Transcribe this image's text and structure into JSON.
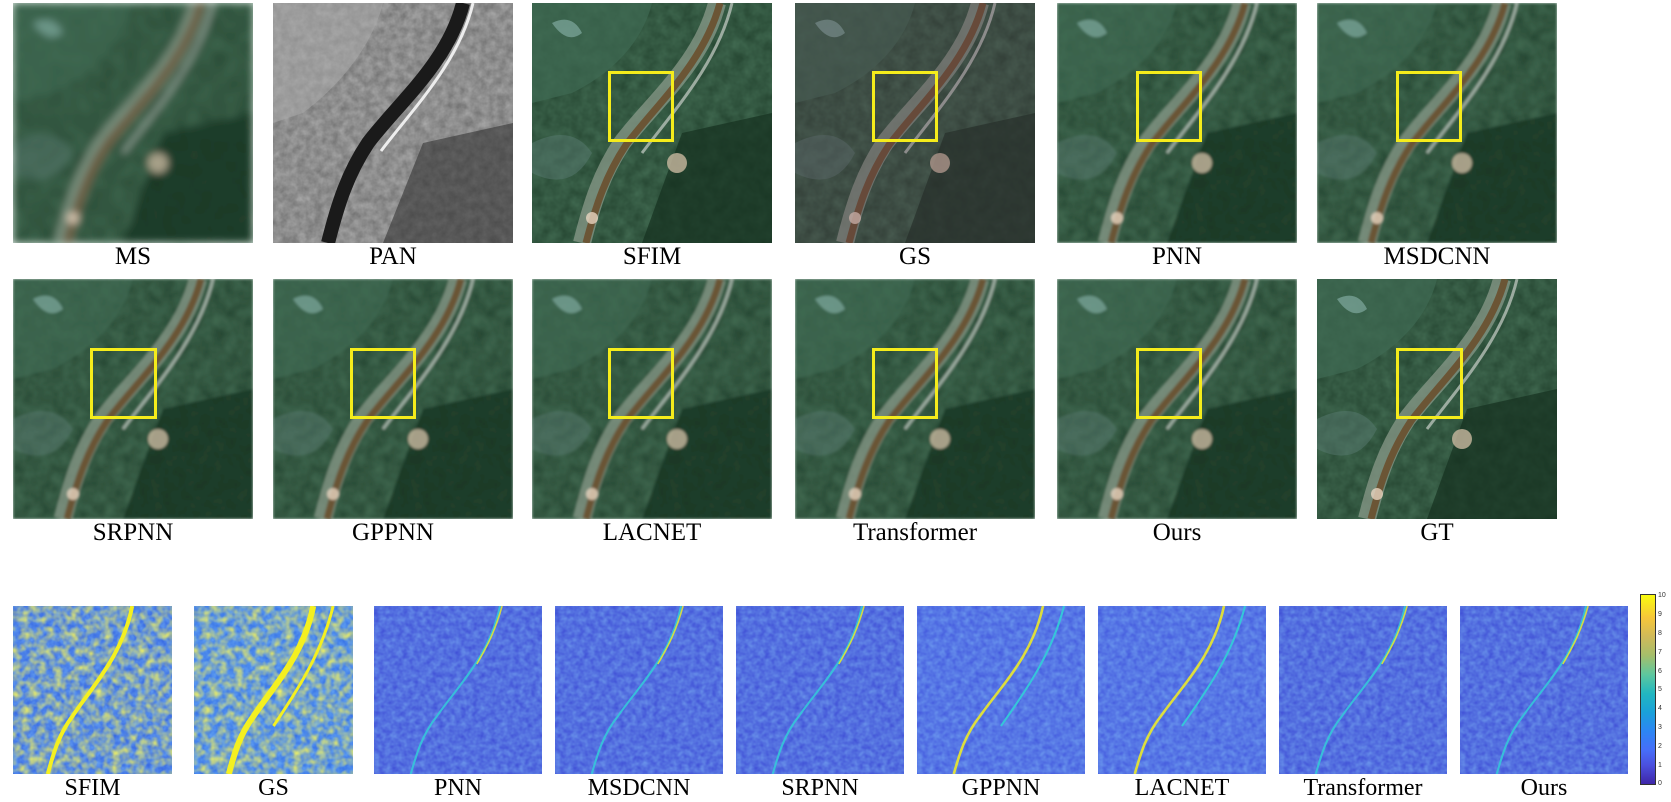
{
  "figure": {
    "row1_captions": [
      "MS",
      "PAN",
      "SFIM",
      "GS",
      "PNN",
      "MSDCNN"
    ],
    "row2_captions": [
      "SRPNN",
      "GPPNN",
      "LACNET",
      "Transformer",
      "Ours",
      "GT"
    ],
    "row3_captions": [
      "SFIM",
      "GS",
      "PNN",
      "MSDCNN",
      "SRPNN",
      "GPPNN",
      "LACNET",
      "Transformer",
      "Ours"
    ],
    "colorbar_ticks": [
      "10",
      "9",
      "8",
      "7",
      "6",
      "5",
      "4",
      "3",
      "2",
      "1",
      "0"
    ],
    "colors": {
      "zoom_box": "#f5ec1b",
      "forest_dark": "#1f3b2a",
      "forest_mid": "#2f5a3a",
      "river": "#6a5a3a",
      "pan_bg": "#6b6b6b",
      "error_bg": "#3a4fd8",
      "error_hot": "#f4f020"
    }
  }
}
